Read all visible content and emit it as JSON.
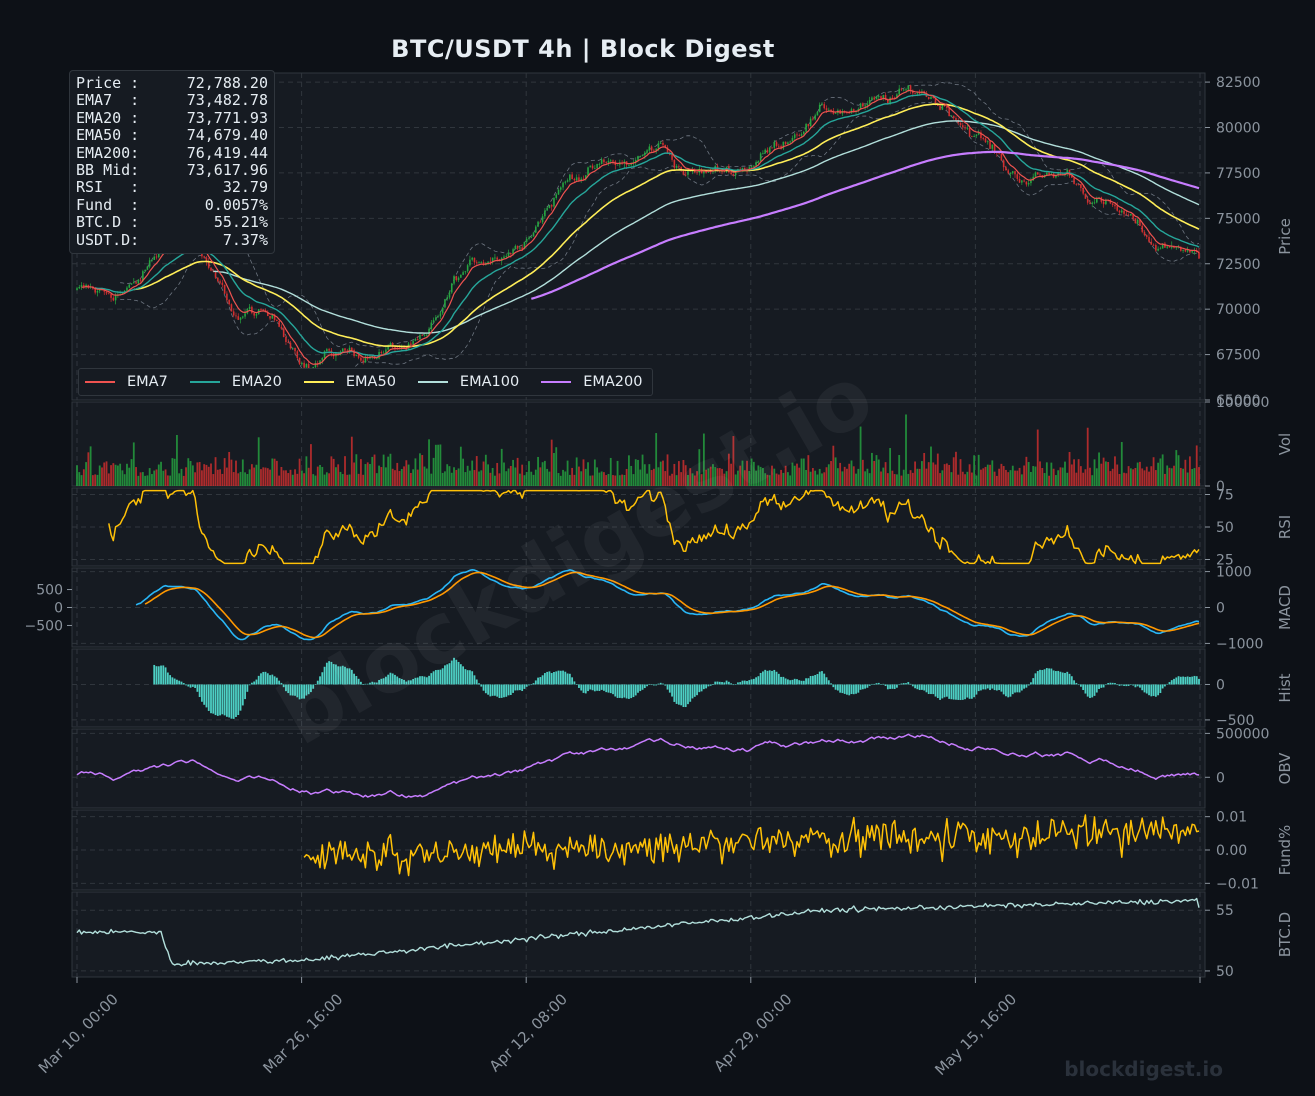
{
  "title": "BTC/USDT  4h  |  Block Digest",
  "info_box": [
    {
      "label": "Price :",
      "value": "72,788.20"
    },
    {
      "label": "EMA7  :",
      "value": "73,482.78"
    },
    {
      "label": "EMA20 :",
      "value": "73,771.93"
    },
    {
      "label": "EMA50 :",
      "value": "74,679.40"
    },
    {
      "label": "EMA200:",
      "value": "76,419.44"
    },
    {
      "label": "BB Mid:",
      "value": "73,617.96"
    },
    {
      "label": "RSI   :",
      "value": "32.79"
    },
    {
      "label": "Fund  :",
      "value": "0.0057%"
    },
    {
      "label": "BTC.D :",
      "value": "55.21%"
    },
    {
      "label": "USDT.D:",
      "value": "7.37%"
    }
  ],
  "legend": [
    {
      "name": "EMA7",
      "color": "#ef5350"
    },
    {
      "name": "EMA20",
      "color": "#26a69a"
    },
    {
      "name": "EMA50",
      "color": "#ffee58"
    },
    {
      "name": "EMA100",
      "color": "#b2dfdb"
    },
    {
      "name": "EMA200",
      "color": "#c77dff"
    }
  ],
  "watermark_center": "blockdigest.io",
  "watermark_corner": "blockdigest.io",
  "colors": {
    "background": "#0d1117",
    "panel": "#161b22",
    "grid": "#30363d",
    "text": "#8b949e",
    "up": "#26a641",
    "down": "#d32f2f",
    "rsi": "#ffc107",
    "fund": "#ffc107",
    "macd": "#29b6f6",
    "signal": "#ff9800",
    "hist": "#4dd0c4",
    "obv": "#c77dff",
    "btcd": "#b2dfdb",
    "bb": "#6e7681"
  },
  "x_ticks": [
    "Mar 10, 00:00",
    "Mar 26, 16:00",
    "Apr 12, 08:00",
    "Apr 29, 00:00",
    "May 15, 16:00"
  ],
  "chart_data": [
    {
      "id": "price",
      "type": "candlestick",
      "ylabel": "Price",
      "y_ticks": [
        "82500",
        "80000",
        "77500",
        "75000",
        "72500",
        "70000",
        "67500",
        "65000"
      ],
      "ylim": [
        65000,
        83000
      ],
      "x_range": [
        "Mar 10, 00:00",
        "Jun 01, 00:00"
      ],
      "price_path": [
        [
          0,
          71000
        ],
        [
          2,
          70800
        ],
        [
          4,
          71200
        ],
        [
          6,
          73500
        ],
        [
          8,
          74000
        ],
        [
          9,
          72000
        ],
        [
          11,
          69500
        ],
        [
          12,
          69800
        ],
        [
          14,
          69000
        ],
        [
          16,
          67000
        ],
        [
          18,
          67700
        ],
        [
          20,
          67500
        ],
        [
          22,
          67800
        ],
        [
          24,
          68000
        ],
        [
          26,
          71500
        ],
        [
          28,
          72800
        ],
        [
          30,
          73500
        ],
        [
          32,
          75500
        ],
        [
          34,
          77500
        ],
        [
          36,
          77800
        ],
        [
          38,
          78000
        ],
        [
          40,
          79000
        ],
        [
          42,
          77500
        ],
        [
          44,
          77500
        ],
        [
          46,
          78000
        ],
        [
          48,
          79000
        ],
        [
          50,
          80500
        ],
        [
          52,
          81000
        ],
        [
          54,
          81000
        ],
        [
          56,
          81500
        ],
        [
          58,
          82000
        ],
        [
          60,
          81000
        ],
        [
          62,
          79500
        ],
        [
          64,
          77500
        ],
        [
          66,
          77200
        ],
        [
          68,
          77500
        ],
        [
          70,
          76000
        ],
        [
          72,
          75000
        ],
        [
          74,
          73500
        ],
        [
          76,
          73500
        ],
        [
          77,
          72788
        ]
      ],
      "ema200_start": "Apr 12",
      "last": {
        "price": 72788.2,
        "ema7": 73482.78,
        "ema20": 73771.93,
        "ema50": 74679.4,
        "ema200": 76419.44,
        "bb_mid": 73617.96
      }
    },
    {
      "id": "volume",
      "type": "bar",
      "ylabel": "Vol",
      "y_ticks": [
        "100000",
        "0"
      ],
      "ylim": [
        0,
        100000
      ]
    },
    {
      "id": "rsi",
      "type": "line",
      "ylabel": "RSI",
      "y_ticks": [
        "75",
        "50",
        "25"
      ],
      "ylim": [
        20,
        80
      ],
      "last": 32.79
    },
    {
      "id": "macd",
      "type": "line",
      "ylabel": "MACD",
      "y_ticks": [
        "1000",
        "0",
        "−1000"
      ],
      "left_ticks": [
        "500",
        "0",
        "−500"
      ],
      "ylim": [
        -1100,
        1100
      ],
      "series": [
        {
          "name": "MACD"
        },
        {
          "name": "Signal"
        }
      ]
    },
    {
      "id": "hist",
      "type": "bar",
      "ylabel": "Hist",
      "y_ticks": [
        "0",
        "−500"
      ],
      "ylim": [
        -600,
        500
      ]
    },
    {
      "id": "obv",
      "type": "line",
      "ylabel": "OBV",
      "y_ticks": [
        "500000",
        "0"
      ],
      "ylim": [
        -350000,
        550000
      ]
    },
    {
      "id": "fund",
      "type": "line",
      "ylabel": "Fund%",
      "y_ticks": [
        "0.01",
        "0.00",
        "−0.01"
      ],
      "ylim": [
        -0.012,
        0.012
      ],
      "last": 0.0057
    },
    {
      "id": "btcd",
      "type": "line",
      "ylabel": "BTC.D",
      "y_ticks": [
        "55",
        "50"
      ],
      "ylim": [
        49.5,
        56.5
      ],
      "last": 55.21
    }
  ]
}
